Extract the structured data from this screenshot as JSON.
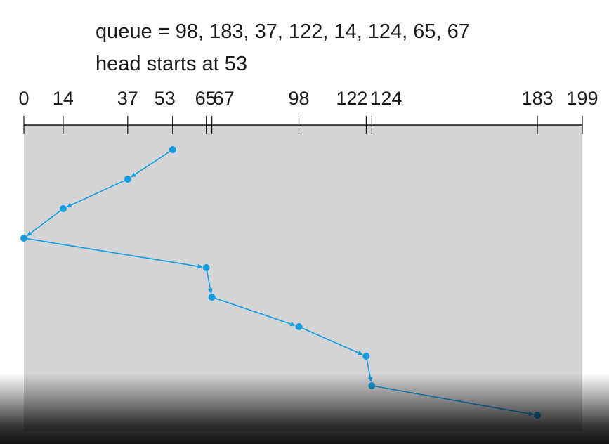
{
  "caption": {
    "queue_line": "queue = 98, 183, 37, 122, 14, 124, 65, 67",
    "head_line": "head starts at 53"
  },
  "scale": {
    "min": 0,
    "max": 199,
    "ticks": [
      {
        "value": 0,
        "label": "0"
      },
      {
        "value": 14,
        "label": "14"
      },
      {
        "value": 37,
        "label": "37"
      },
      {
        "value": 53,
        "label": "53"
      },
      {
        "value": 65,
        "label": "65"
      },
      {
        "value": 67,
        "label": "67"
      },
      {
        "value": 98,
        "label": "98"
      },
      {
        "value": 122,
        "label": "122"
      },
      {
        "value": 124,
        "label": "124"
      },
      {
        "value": 183,
        "label": "183"
      },
      {
        "value": 199,
        "label": "199"
      }
    ]
  },
  "head_path": [
    53,
    37,
    14,
    0,
    65,
    67,
    98,
    122,
    124,
    183
  ],
  "colors": {
    "panel": "#d3d4d6",
    "path": "#139ddd",
    "axis": "#111111",
    "text": "#1a1a1a"
  }
}
